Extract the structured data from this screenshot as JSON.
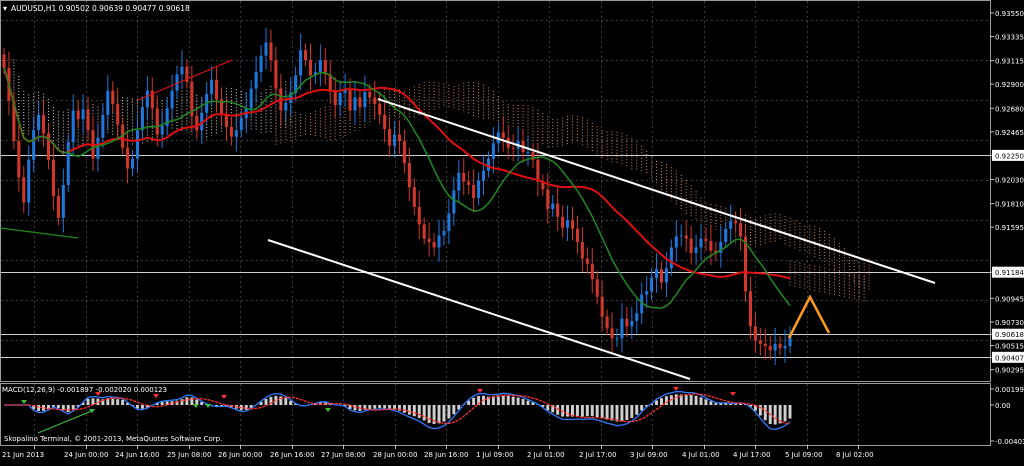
{
  "symbol_header": "AUDUSD,H1  0.90502 0.90639 0.90477 0.90618",
  "copyright": "Skopalino Terminal, © 2001-2013, MetaQuotes Software Corp.",
  "colors": {
    "background": "#000000",
    "grid": "#3a3a3a",
    "bull_candle": "#1e78dc",
    "bear_candle": "#d2372d",
    "ma_red": "#e01010",
    "ma_green": "#1f8a1f",
    "ichimoku_cloud_light": "#d8d8d8",
    "ichimoku_cloud_orange": "#d98a4a",
    "channel_lines": "#ffffff",
    "forecast_arrow": "#ff9a1a",
    "macd_hist": "#cfcfcf",
    "macd_blue": "#2f7cff",
    "macd_red": "#ff3030",
    "axis_text": "#ffffff"
  },
  "price_axis": {
    "ticks": [
      "0.93550",
      "0.93335",
      "0.93115",
      "0.92900",
      "0.92680",
      "0.92465",
      "0.92250",
      "0.92030",
      "0.91810",
      "0.91595",
      "0.91184",
      "0.90945",
      "0.90730",
      "0.90618",
      "0.90515",
      "0.90407",
      "0.90295"
    ],
    "tick_values": [
      0.9355,
      0.93335,
      0.93115,
      0.929,
      0.9268,
      0.92465,
      0.9225,
      0.9203,
      0.9181,
      0.91595,
      0.91184,
      0.90945,
      0.9073,
      0.90618,
      0.90515,
      0.90407,
      0.90295
    ],
    "highlighted": [
      "0.92250",
      "0.91184",
      "0.90618",
      "0.90407"
    ]
  },
  "time_axis": {
    "labels": [
      "21 Jun 2013",
      "24 Jun 00:00",
      "24 Jun 16:00",
      "25 Jun 08:00",
      "26 Jun 00:00",
      "26 Jun 16:00",
      "27 Jun 08:00",
      "28 Jun 00:00",
      "28 Jun 16:00",
      "1 Jul 09:00",
      "2 Jul 01:00",
      "2 Jul 17:00",
      "3 Jul 09:00",
      "4 Jul 01:00",
      "4 Jul 17:00",
      "5 Jul 09:00",
      "8 Jul 02:00"
    ]
  },
  "macd": {
    "label": "MACD(12,26,9) -0.001897 -0.002020 0.000123",
    "ticks": [
      "0.001997",
      "0.00",
      "-0.00403"
    ]
  },
  "chart_data": {
    "type": "candlestick",
    "symbol": "AUDUSD",
    "timeframe": "H1",
    "last_bar": {
      "open": 0.90502,
      "high": 0.90639,
      "low": 0.90477,
      "close": 0.90618
    },
    "ylim": [
      0.902,
      0.9365
    ],
    "horizontal_levels": [
      0.9225,
      0.91184,
      0.90618,
      0.90407
    ],
    "closes": [
      0.9305,
      0.9275,
      0.9238,
      0.9205,
      0.9182,
      0.9221,
      0.9248,
      0.9262,
      0.9245,
      0.9221,
      0.9188,
      0.9168,
      0.9198,
      0.9237,
      0.9266,
      0.9258,
      0.9267,
      0.9248,
      0.9222,
      0.9241,
      0.9262,
      0.9284,
      0.9272,
      0.9253,
      0.9232,
      0.9213,
      0.9222,
      0.9248,
      0.9269,
      0.9284,
      0.9268,
      0.9244,
      0.9252,
      0.9268,
      0.9284,
      0.9299,
      0.9306,
      0.9292,
      0.9261,
      0.9248,
      0.9264,
      0.9281,
      0.9294,
      0.9276,
      0.9263,
      0.9251,
      0.9242,
      0.9248,
      0.9259,
      0.9268,
      0.9286,
      0.9301,
      0.9316,
      0.9328,
      0.9312,
      0.9286,
      0.9266,
      0.9273,
      0.9282,
      0.9298,
      0.9321,
      0.9312,
      0.9298,
      0.9301,
      0.9312,
      0.9299,
      0.9284,
      0.9271,
      0.9282,
      0.9286,
      0.9266,
      0.9278,
      0.9269,
      0.9283,
      0.9278,
      0.9272,
      0.9262,
      0.9249,
      0.9234,
      0.9244,
      0.9238,
      0.9218,
      0.9196,
      0.9178,
      0.9162,
      0.9149,
      0.9146,
      0.9141,
      0.9152,
      0.9156,
      0.9172,
      0.9193,
      0.9209,
      0.9201,
      0.9198,
      0.9186,
      0.9202,
      0.9211,
      0.9222,
      0.9236,
      0.9246,
      0.9241,
      0.9232,
      0.9231,
      0.9238,
      0.9228,
      0.9228,
      0.9221,
      0.9201,
      0.9194,
      0.9176,
      0.9181,
      0.9169,
      0.9159,
      0.9166,
      0.9158,
      0.9146,
      0.9131,
      0.9126,
      0.9112,
      0.9096,
      0.9078,
      0.9067,
      0.9058,
      0.9058,
      0.9076,
      0.9069,
      0.9074,
      0.9081,
      0.9098,
      0.9101,
      0.9113,
      0.9121,
      0.9109,
      0.9122,
      0.9141,
      0.9151,
      0.9152,
      0.9149,
      0.9136,
      0.9141,
      0.9149,
      0.9147,
      0.9138,
      0.9136,
      0.9146,
      0.9158,
      0.9165,
      0.9163,
      0.9151,
      0.9101,
      0.9069,
      0.9056,
      0.9053,
      0.9051,
      0.9047,
      0.9053,
      0.9049,
      0.9051,
      0.9062
    ]
  }
}
